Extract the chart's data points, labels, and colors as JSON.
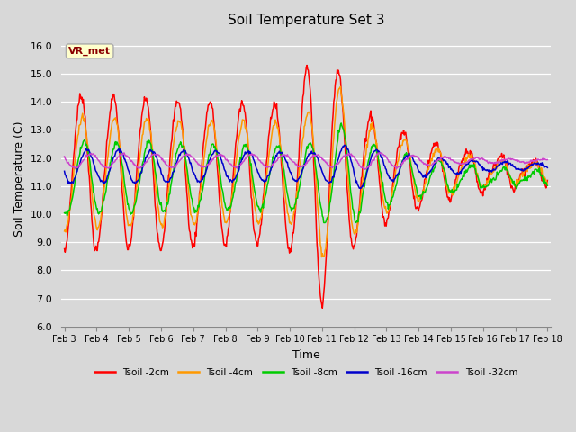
{
  "title": "Soil Temperature Set 3",
  "xlabel": "Time",
  "ylabel": "Soil Temperature (C)",
  "ylim": [
    6.0,
    16.5
  ],
  "yticks": [
    6.0,
    7.0,
    8.0,
    9.0,
    10.0,
    11.0,
    12.0,
    13.0,
    14.0,
    15.0,
    16.0
  ],
  "ytick_labels": [
    "6.0",
    "7.0",
    "8.0",
    "9.0",
    "10.0",
    "11.0",
    "12.0",
    "13.0",
    "14.0",
    "15.0",
    "16.0"
  ],
  "colors": {
    "Tsoil -2cm": "#ff0000",
    "Tsoil -4cm": "#ff9900",
    "Tsoil -8cm": "#00cc00",
    "Tsoil -16cm": "#0000cc",
    "Tsoil -32cm": "#cc44cc"
  },
  "fig_bg_color": "#d8d8d8",
  "plot_bg_color": "#d8d8d8",
  "grid_color": "#ffffff",
  "annotation_text": "VR_met",
  "xtick_labels": [
    "Feb 3",
    "Feb 4",
    "Feb 5",
    "Feb 6",
    "Feb 7",
    "Feb 8",
    "Feb 9",
    "Feb 10",
    "Feb 11",
    "Feb 12",
    "Feb 13",
    "Feb 14",
    "Feb 15",
    "Feb 16",
    "Feb 17",
    "Feb 18"
  ],
  "title_fontsize": 11,
  "axis_fontsize": 9,
  "tick_fontsize": 8
}
